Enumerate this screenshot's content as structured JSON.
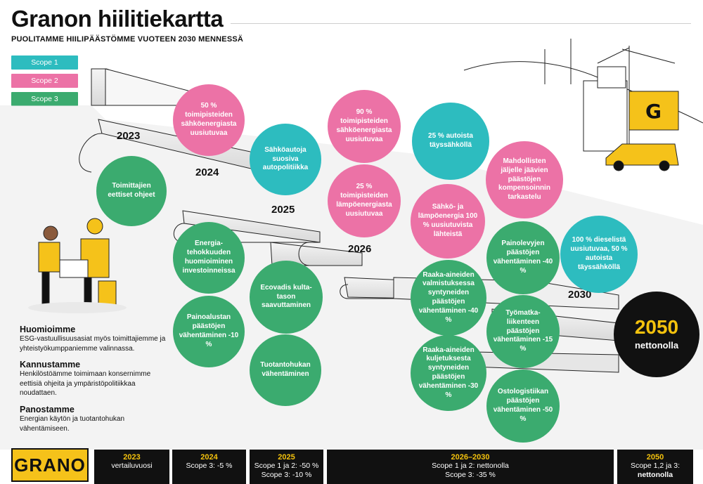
{
  "header": {
    "title": "Granon hiilitiekartta",
    "subtitle": "PUOLITAMME HIILIPÄÄSTÖMME VUOTEEN 2030 MENNESSÄ"
  },
  "legend": {
    "scope1": "Scope 1",
    "scope2": "Scope 2",
    "scope3": "Scope 3",
    "scope1_color": "#2dbcbf",
    "scope2_color": "#ec72a6",
    "scope3_color": "#3bab6f"
  },
  "years": {
    "y2023": "2023",
    "y2024": "2024",
    "y2025": "2025",
    "y2026": "2026",
    "y2030": "2030"
  },
  "circles": {
    "c1": "50 % toimipisteiden sähköenergiasta uusiutuvaa",
    "c2": "Toimittajien eettiset ohjeet",
    "c3": "Sähköautoja suosiva autopolitiikka",
    "c4": "Energia-tehokkuuden huomioiminen investoinneissa",
    "c5": "Painoalustan päästöjen vähentäminen -10 %",
    "c6": "Ecovadis kulta-tason saavuttaminen",
    "c7": "Tuotantohukan vähentäminen",
    "c8": "90 % toimipisteiden sähköenergiasta uusiutuvaa",
    "c9": "25 % toimipisteiden lämpöenergiasta uusiutuvaa",
    "c10": "25 % autoista täyssähköllä",
    "c11": "Sähkö- ja lämpöenergia 100 % uusiutuvista lähteistä",
    "c12": "Raaka-aineiden valmistuksessa syntyneiden päästöjen vähentäminen -40 %",
    "c13": "Raaka-aineiden kuljetuksesta syntyneiden päästöjen vähentäminen -30 %",
    "c14": "Mahdollisten jäljelle jäävien päästöjen kompensoinnin tarkastelu",
    "c15": "Painolevyjen päästöjen vähentäminen -40 %",
    "c16": "Työmatka-liikenteen päästöjen vähentäminen -15 %",
    "c17": "Ostologistiikan päästöjen vähentäminen -50 %",
    "c18": "100 % dieselistä uusiutuvaa, 50 % autoista täyssähköllä",
    "goal_year": "2050",
    "goal_label": "nettonolla"
  },
  "commitments": {
    "h1": "Huomioimme",
    "t1": "ESG-vastuullisuusasiat myös toimittajiemme ja yhteistyökumppaniemme valinnassa.",
    "h2": "Kannustamme",
    "t2": "Henkilöstöämme toimimaan konsernimme eettisiä ohjeita ja ympäristöpolitiikkaa noudattaen.",
    "h3": "Panostamme",
    "t3": "Energian käytön ja tuotantohukan vähentämiseen."
  },
  "footer": {
    "logo": "GRANO",
    "f1_year": "2023",
    "f1_l1": "vertailuvuosi",
    "f2_year": "2024",
    "f2_l1": "Scope 3: -5 %",
    "f3_year": "2025",
    "f3_l1": "Scope 1 ja 2: -50 %",
    "f3_l2": "Scope 3: -10 %",
    "f4_year": "2026–2030",
    "f4_l1": "Scope 1 ja 2: nettonolla",
    "f4_l2": "Scope 3: -35 %",
    "f5_year": "2050",
    "f5_l1": "Scope 1,2 ja 3:",
    "f5_l2": "nettonolla"
  }
}
